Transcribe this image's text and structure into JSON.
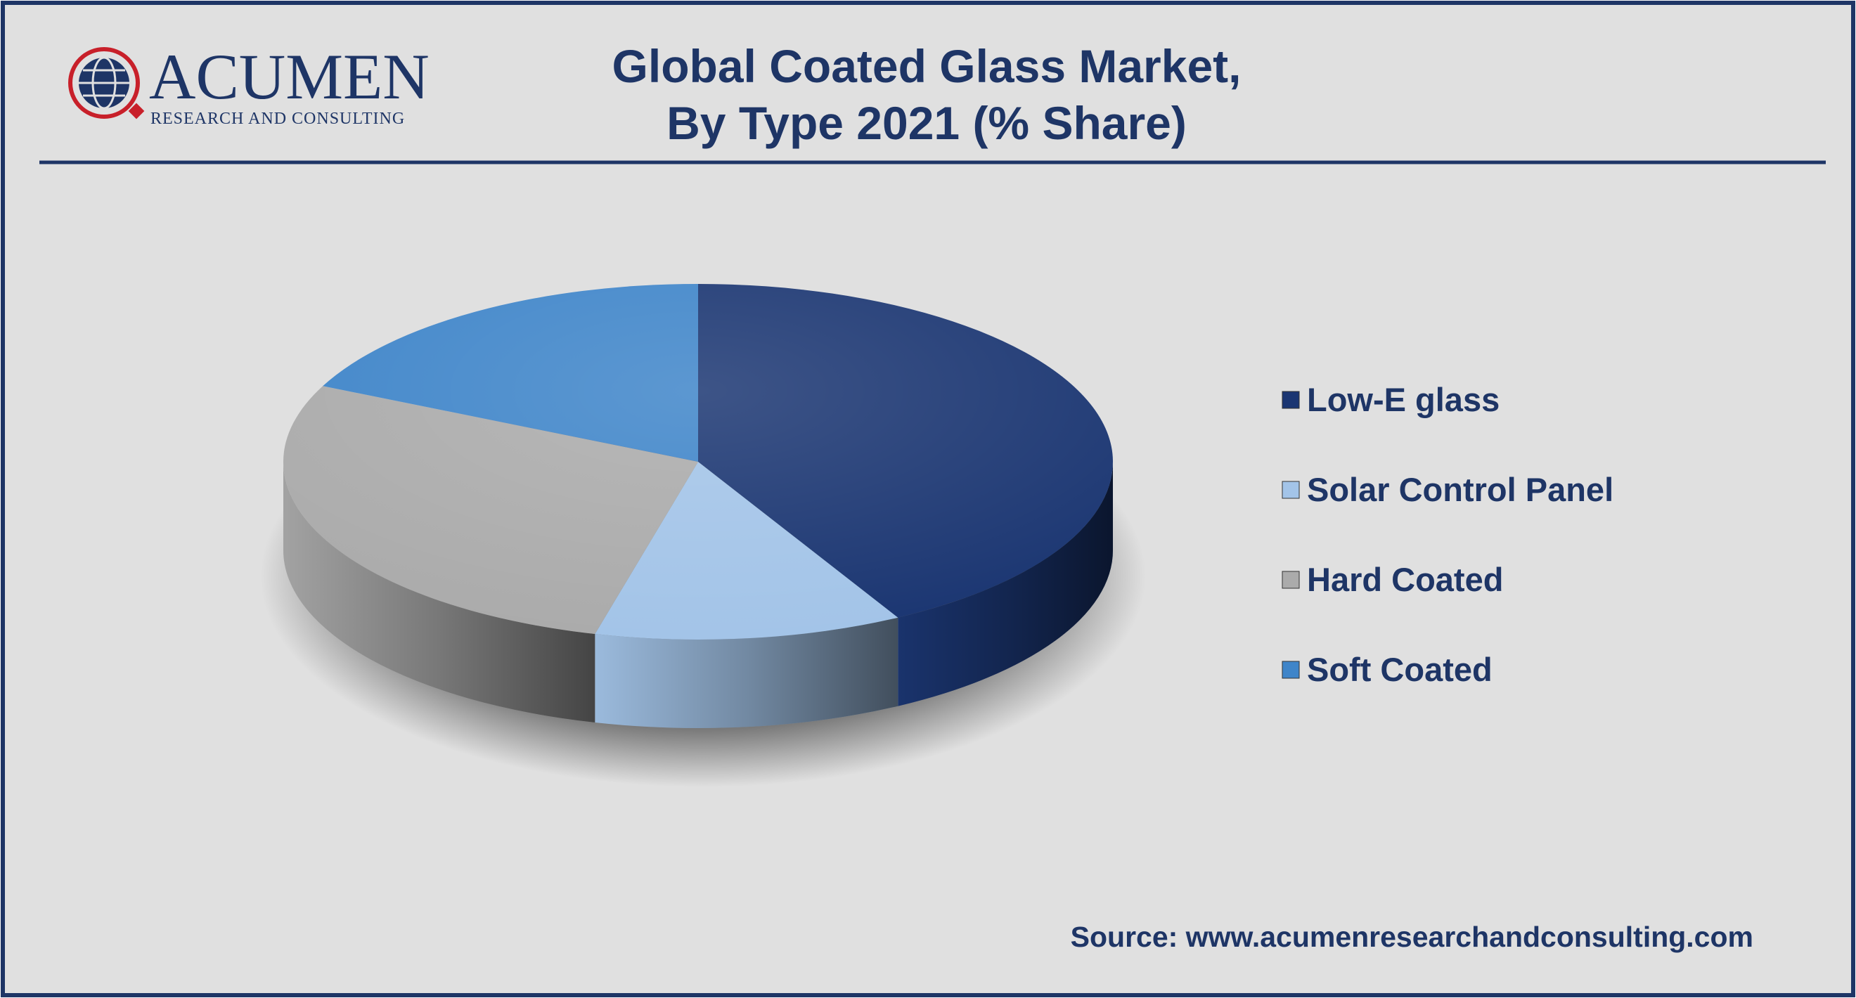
{
  "logo": {
    "name": "ACUMEN",
    "tagline": "RESEARCH AND CONSULTING"
  },
  "chart_data": {
    "type": "pie",
    "title": [
      "Global Coated Glass Market,",
      "By Type 2021 (% Share)"
    ],
    "categories": [
      "Low-E glass",
      "Solar Control Panel",
      "Hard Coated",
      "Soft Coated"
    ],
    "values": [
      42,
      12,
      28,
      18
    ],
    "colors": [
      "#1b3672",
      "#a3c4e8",
      "#ababab",
      "#3f85c9"
    ],
    "legend": "right",
    "source": "Source: www.acumenresearchandconsulting.com"
  }
}
